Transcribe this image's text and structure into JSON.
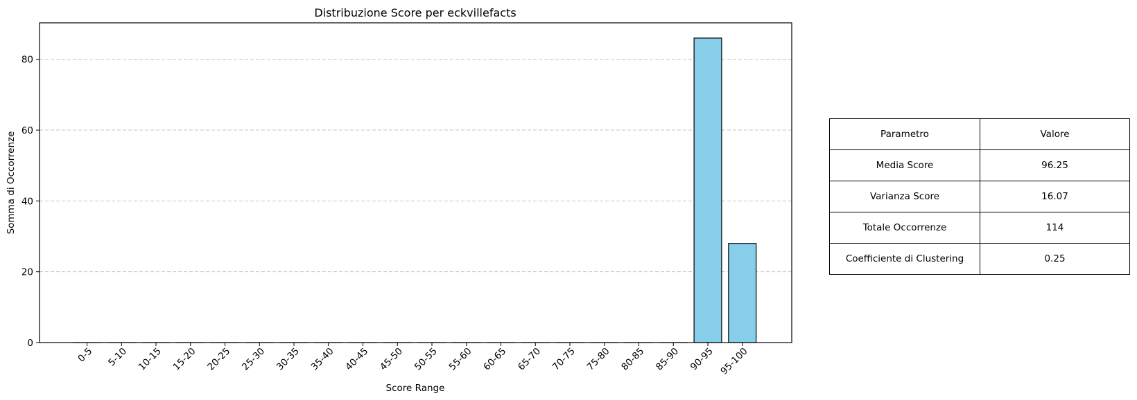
{
  "chart_data": {
    "type": "bar",
    "title": "Distribuzione Score per eckvillefacts",
    "xlabel": "Score Range",
    "ylabel": "Somma di Occorrenze",
    "categories": [
      "0-5",
      "5-10",
      "10-15",
      "15-20",
      "20-25",
      "25-30",
      "30-35",
      "35-40",
      "40-45",
      "45-50",
      "50-55",
      "55-60",
      "60-65",
      "65-70",
      "70-75",
      "75-80",
      "80-85",
      "85-90",
      "90-95",
      "95-100"
    ],
    "values": [
      0,
      0,
      0,
      0,
      0,
      0,
      0,
      0,
      0,
      0,
      0,
      0,
      0,
      0,
      0,
      0,
      0,
      0,
      86,
      28
    ],
    "ylim": [
      0,
      90.3
    ],
    "yticks": [
      0,
      20,
      40,
      60,
      80
    ],
    "grid": "y-dashed",
    "bar_color": "#87ceeb",
    "edge_color": "#000000"
  },
  "table": {
    "header": [
      "Parametro",
      "Valore"
    ],
    "rows": [
      [
        "Media Score",
        "96.25"
      ],
      [
        "Varianza Score",
        "16.07"
      ],
      [
        "Totale Occorrenze",
        "114"
      ],
      [
        "Coefficiente di Clustering",
        "0.25"
      ]
    ]
  }
}
